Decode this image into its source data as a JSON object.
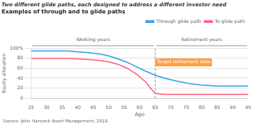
{
  "chart_data": {
    "type": "line",
    "title": "Two different glide paths, each designed to address a different investor need",
    "subtitle": "Examples of through and to glide paths",
    "source": "Source: John Hancock Asset Management, 2018.",
    "xlabel": "Age",
    "ylabel": "Equity allocation",
    "xlim": [
      25,
      95
    ],
    "xticks": [
      25,
      30,
      35,
      40,
      45,
      50,
      55,
      60,
      65,
      70,
      75,
      80,
      85,
      90,
      95
    ],
    "ylim": [
      0,
      100
    ],
    "yticks": [
      0,
      20,
      40,
      60,
      80,
      {
        "value": 100,
        "label": "100%"
      }
    ],
    "grid": "y",
    "legend": "upper right",
    "series": [
      {
        "name": "Through glide path",
        "x": [
          25,
          28,
          32,
          37,
          40,
          43,
          47,
          50,
          53,
          56,
          59,
          62,
          65,
          68,
          72,
          76,
          80,
          85,
          90,
          95
        ],
        "values": [
          95,
          95,
          95,
          95,
          93,
          92,
          89,
          85,
          79,
          72,
          63,
          54,
          46,
          40,
          34,
          29,
          26,
          24,
          24,
          24
        ]
      },
      {
        "name": "To glide path",
        "x": [
          25,
          28,
          32,
          37,
          40,
          43,
          47,
          50,
          53,
          56,
          59,
          62,
          64,
          65,
          68,
          72,
          76,
          80,
          85,
          90,
          95
        ],
        "values": [
          80,
          80,
          80,
          80,
          79,
          78,
          76,
          73,
          68,
          60,
          48,
          32,
          16,
          9,
          7,
          7,
          7,
          7,
          7,
          7,
          7
        ]
      }
    ],
    "reference_line": {
      "x": 65,
      "line_style": "dashed"
    },
    "annotations": [
      {
        "text": "Target retirement date",
        "x": 65,
        "y": 72
      }
    ],
    "brackets": [
      {
        "text": "Working years",
        "x": [
          25,
          65
        ]
      },
      {
        "text": "Retirement years",
        "x": [
          65,
          95
        ]
      }
    ]
  }
}
